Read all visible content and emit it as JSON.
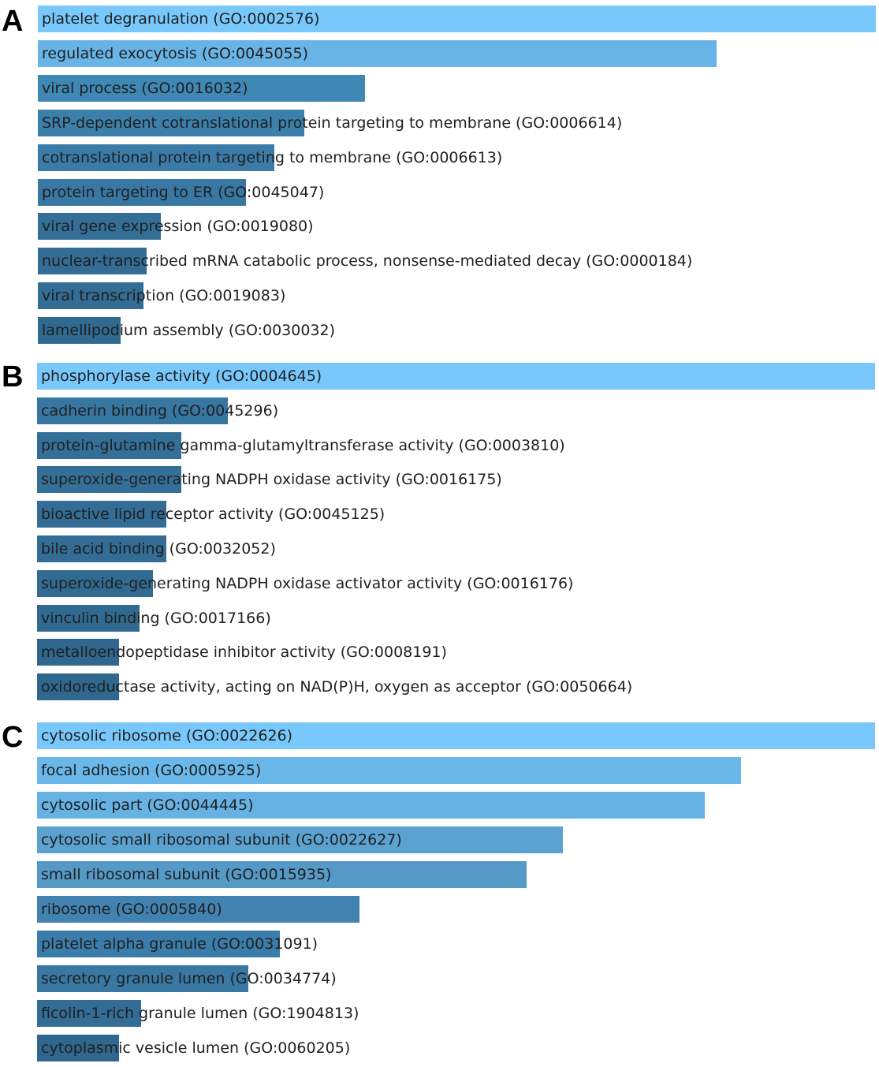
{
  "chart_data": [
    {
      "type": "bar",
      "orientation": "horizontal",
      "title": "A",
      "categories": [
        "platelet degranulation (GO:0002576)",
        "regulated exocytosis (GO:0045055)",
        "viral process (GO:0016032)",
        "SRP-dependent cotranslational protein targeting to membrane (GO:0006614)",
        "cotranslational protein targeting to membrane (GO:0006613)",
        "protein targeting to ER (GO:0045047)",
        "viral gene expression (GO:0019080)",
        "nuclear-transcribed mRNA catabolic process, nonsense-mediated decay (GO:0000184)",
        "viral transcription (GO:0019083)",
        "lamellipodium assembly (GO:0030032)"
      ],
      "values": [
        1.0,
        0.81,
        0.39,
        0.318,
        0.282,
        0.248,
        0.147,
        0.13,
        0.126,
        0.099
      ],
      "colors": [
        "#78c8fc",
        "#68b4e6",
        "#3f87b5",
        "#3b7fab",
        "#3a7ca7",
        "#3878a3",
        "#346f98",
        "#336c94",
        "#336c94",
        "#316a91"
      ],
      "xlabel": "",
      "ylabel": "",
      "xlim": [
        0,
        1
      ]
    },
    {
      "type": "bar",
      "orientation": "horizontal",
      "title": "B",
      "categories": [
        "phosphorylase activity (GO:0004645)",
        "cadherin binding (GO:0045296)",
        "protein-glutamine gamma-glutamyltransferase activity (GO:0003810)",
        "superoxide-generating NADPH oxidase activity (GO:0016175)",
        "bioactive lipid receptor activity (GO:0045125)",
        "bile acid binding (GO:0032052)",
        "superoxide-generating NADPH oxidase activator activity (GO:0016176)",
        "vinculin binding (GO:0017166)",
        "metalloendopeptidase inhibitor activity (GO:0008191)",
        "oxidoreductase activity, acting on NAD(P)H, oxygen as acceptor (GO:0050664)"
      ],
      "values": [
        1.0,
        0.228,
        0.172,
        0.172,
        0.154,
        0.154,
        0.138,
        0.122,
        0.098,
        0.098
      ],
      "colors": [
        "#78c8fc",
        "#3776a0",
        "#346f98",
        "#346f98",
        "#336c94",
        "#336c94",
        "#326b92",
        "#316a91",
        "#30678e",
        "#30678e"
      ],
      "xlabel": "",
      "ylabel": "",
      "xlim": [
        0,
        1
      ]
    },
    {
      "type": "bar",
      "orientation": "horizontal",
      "title": "C",
      "categories": [
        "cytosolic ribosome (GO:0022626)",
        "focal adhesion (GO:0005925)",
        "cytosolic part (GO:0044445)",
        "cytosolic small ribosomal subunit (GO:0022627)",
        "small ribosomal subunit (GO:0015935)",
        "ribosome (GO:0005840)",
        "platelet alpha granule (GO:0031091)",
        "secretory granule lumen (GO:0034774)",
        "ficolin-1-rich granule lumen (GO:1904813)",
        "cytoplasmic vesicle lumen (GO:0060205)"
      ],
      "values": [
        1.0,
        0.84,
        0.797,
        0.627,
        0.584,
        0.385,
        0.29,
        0.252,
        0.124,
        0.098
      ],
      "colors": [
        "#78c8fc",
        "#6ab8ea",
        "#66b2e3",
        "#5ba2d1",
        "#5599c7",
        "#4282b0",
        "#3b7daa",
        "#3878a3",
        "#336c94",
        "#30678e"
      ],
      "xlabel": "",
      "ylabel": "",
      "xlim": [
        0,
        1
      ]
    }
  ]
}
